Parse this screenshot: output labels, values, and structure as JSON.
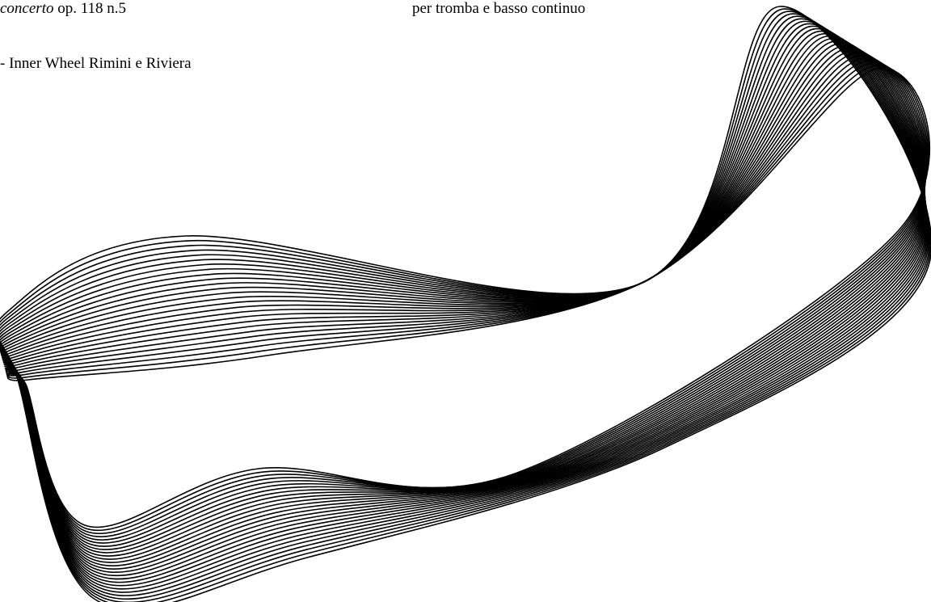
{
  "header": {
    "work": {
      "italic": "concerto",
      "rest": "op. 118 n.5"
    },
    "instrumentation": "per tromba e basso continuo",
    "organizer": "- Inner Wheel Rimini e Riviera"
  }
}
